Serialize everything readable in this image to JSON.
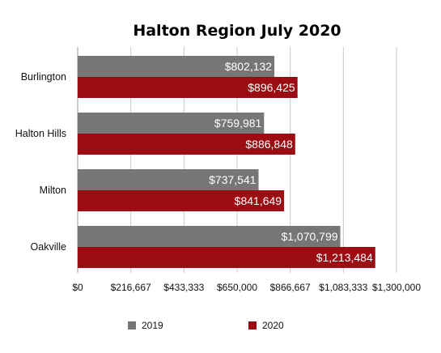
{
  "chart_data": {
    "type": "bar",
    "orientation": "horizontal",
    "title": "Halton Region July 2020",
    "categories": [
      "Burlington",
      "Halton Hills",
      "Milton",
      "Oakville"
    ],
    "series": [
      {
        "name": "2019",
        "color": "#767676",
        "values": [
          802132,
          759981,
          737541,
          1070799
        ],
        "labels": [
          "$802,132",
          "$759,981",
          "$737,541",
          "$1,070,799"
        ]
      },
      {
        "name": "2020",
        "color": "#9c0d13",
        "values": [
          896425,
          886848,
          841649,
          1213484
        ],
        "labels": [
          "$896,425",
          "$886,848",
          "$841,649",
          "$1,213,484"
        ]
      }
    ],
    "xlim": [
      0,
      1300000
    ],
    "xticks": [
      0,
      216667,
      433333,
      650000,
      866667,
      1083333,
      1300000
    ],
    "xtick_labels": [
      "$0",
      "$216,667",
      "$433,333",
      "$650,000",
      "$866,667",
      "$1,083,333",
      "$1,300,000"
    ],
    "grid": true,
    "legend_position": "bottom"
  }
}
